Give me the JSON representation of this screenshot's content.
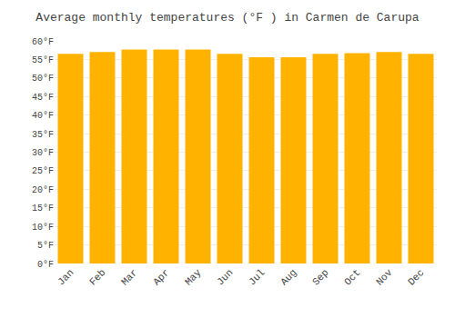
{
  "chart_data": {
    "type": "bar",
    "title": "Average monthly temperatures (°F ) in Carmen de Carupa",
    "categories": [
      "Jan",
      "Feb",
      "Mar",
      "Apr",
      "May",
      "Jun",
      "Jul",
      "Aug",
      "Sep",
      "Oct",
      "Nov",
      "Dec"
    ],
    "values": [
      56.5,
      57.0,
      57.7,
      57.7,
      57.7,
      56.5,
      55.6,
      55.6,
      56.5,
      56.7,
      57.0,
      56.5
    ],
    "color": "#FFB300",
    "ylim": [
      0,
      60
    ],
    "yticks": [
      {
        "value": 0,
        "label": "0°F"
      },
      {
        "value": 5,
        "label": "5°F"
      },
      {
        "value": 10,
        "label": "10°F"
      },
      {
        "value": 15,
        "label": "15°F"
      },
      {
        "value": 20,
        "label": "20°F"
      },
      {
        "value": 25,
        "label": "25°F"
      },
      {
        "value": 30,
        "label": "30°F"
      },
      {
        "value": 35,
        "label": "35°F"
      },
      {
        "value": 40,
        "label": "40°F"
      },
      {
        "value": 45,
        "label": "45°F"
      },
      {
        "value": 50,
        "label": "50°F"
      },
      {
        "value": 55,
        "label": "55°F"
      },
      {
        "value": 60,
        "label": "60°F"
      }
    ],
    "grid": true
  }
}
